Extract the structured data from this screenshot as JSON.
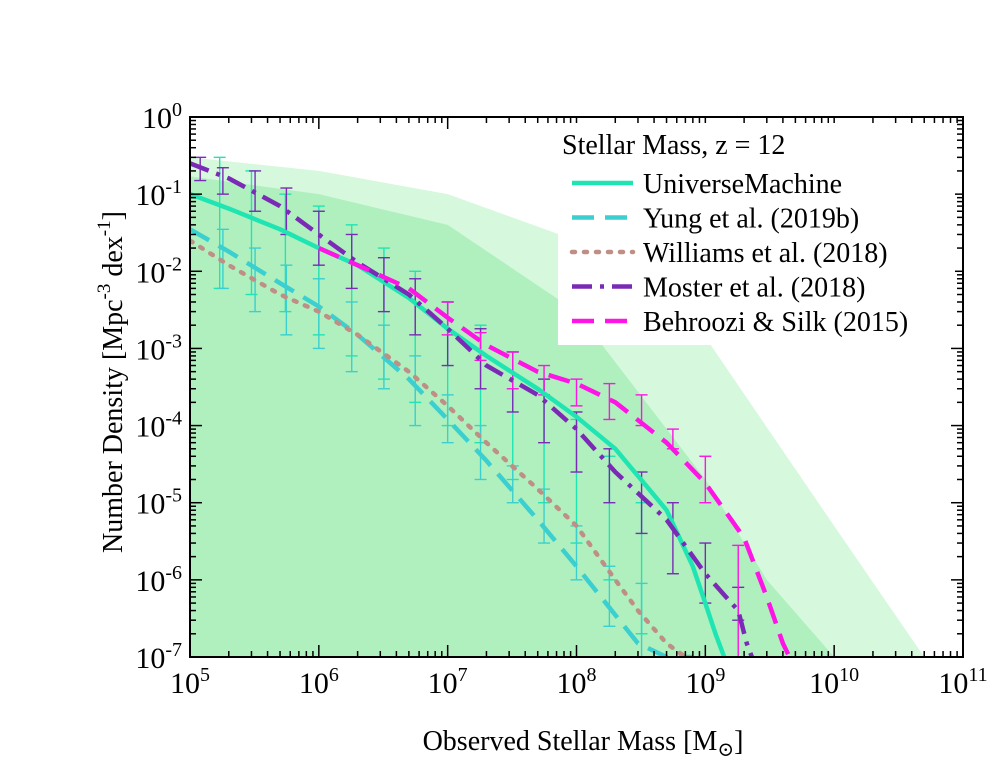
{
  "chart_data": {
    "type": "line",
    "title": "",
    "xlabel": "Observed Stellar Mass [M",
    "xlabel_sub": "⊙",
    "xlabel_end": "]",
    "ylabel": "Number Density [Mpc",
    "ylabel_sup1": "-3",
    "ylabel_mid": " dex",
    "ylabel_sup2": "-1",
    "ylabel_end": "]",
    "x_scale": "log",
    "y_scale": "log",
    "xlim": [
      100000,
      100000000000
    ],
    "ylim": [
      1e-07,
      1
    ],
    "x_ticks": [
      {
        "base": "10",
        "exp": "5"
      },
      {
        "base": "10",
        "exp": "6"
      },
      {
        "base": "10",
        "exp": "7"
      },
      {
        "base": "10",
        "exp": "8"
      },
      {
        "base": "10",
        "exp": "9"
      },
      {
        "base": "10",
        "exp": "10"
      },
      {
        "base": "10",
        "exp": "11"
      }
    ],
    "y_ticks": [
      {
        "base": "10",
        "exp": "-7"
      },
      {
        "base": "10",
        "exp": "-6"
      },
      {
        "base": "10",
        "exp": "-5"
      },
      {
        "base": "10",
        "exp": "-4"
      },
      {
        "base": "10",
        "exp": "-3"
      },
      {
        "base": "10",
        "exp": "-2"
      },
      {
        "base": "10",
        "exp": "-1"
      },
      {
        "base": "10",
        "exp": "0"
      }
    ],
    "legend_title": "Stellar Mass, z = 12",
    "legend_position": "top-right",
    "grid": false,
    "bands": [
      {
        "color": "#d6f8dc",
        "x": [
          100000,
          1000000,
          10000000,
          100000000,
          1000000000,
          10000000000,
          50000000000
        ],
        "upper": [
          0.3,
          0.2,
          0.1,
          0.025,
          0.0014,
          5e-06,
          1e-07
        ],
        "lower": [
          1e-07,
          1e-07,
          1e-07,
          1e-07,
          1e-07,
          1e-07,
          1e-07
        ]
      },
      {
        "color": "#b0f0be",
        "x": [
          100000,
          1000000,
          10000000,
          100000000,
          1000000000,
          3000000000,
          10000000000
        ],
        "upper": [
          0.17,
          0.1,
          0.04,
          0.003,
          2e-05,
          1e-06,
          1e-07
        ],
        "lower": [
          1e-07,
          1e-07,
          1e-07,
          1e-07,
          1e-07,
          1e-07,
          1e-07
        ]
      }
    ],
    "series": [
      {
        "name": "UniverseMachine",
        "color": "#1fe5b3",
        "dash": "solid",
        "x": [
          100000,
          200000,
          500000,
          1000000,
          2000000,
          5000000,
          10000000,
          20000000,
          50000000,
          100000000,
          200000000,
          500000000,
          800000000,
          1000000000,
          1200000000,
          1400000000
        ],
        "y": [
          0.1,
          0.065,
          0.035,
          0.02,
          0.012,
          0.0045,
          0.0018,
          0.0008,
          0.0003,
          0.00013,
          5e-05,
          8e-06,
          1.5e-06,
          5e-07,
          2e-07,
          1e-07
        ],
        "errors": {
          "x": [
            170000,
            300000,
            550000,
            1000000,
            1800000,
            3200000,
            5600000,
            10000000,
            18000000,
            32000000,
            56000000,
            100000000,
            180000000,
            320000000
          ],
          "lo": [
            0.006,
            0.005,
            0.003,
            0.0015,
            0.0008,
            0.0004,
            0.0002,
            0.0001,
            6e-05,
            2e-05,
            1e-05,
            3e-06,
            1e-06,
            2e-07
          ],
          "hi": [
            0.3,
            0.2,
            0.1,
            0.07,
            0.04,
            0.02,
            0.01,
            0.004,
            0.002,
            0.0009,
            0.0004,
            0.00012,
            4e-05,
            1e-05
          ]
        }
      },
      {
        "name": "Yung et al. (2019b)",
        "color": "#3ccfcf",
        "dash": "dashed",
        "x": [
          100000,
          200000,
          500000,
          1000000,
          2000000,
          5000000,
          10000000,
          20000000,
          50000000,
          100000000,
          200000000,
          300000000,
          500000000,
          800000000
        ],
        "y": [
          0.035,
          0.018,
          0.007,
          0.0035,
          0.0015,
          0.0004,
          0.00012,
          3.5e-05,
          6e-06,
          1.5e-06,
          3.5e-07,
          1.5e-07,
          1e-07,
          1e-07
        ],
        "errors": {
          "x": [
            180000,
            320000,
            560000,
            1000000,
            1800000,
            3200000,
            5600000,
            10000000,
            18000000,
            32000000,
            56000000,
            100000000,
            180000000,
            320000000
          ],
          "lo": [
            0.006,
            0.003,
            0.0015,
            0.001,
            0.0005,
            0.0003,
            0.0001,
            6e-05,
            2e-05,
            1e-05,
            3e-06,
            1e-06,
            2.5e-07,
            1e-07
          ],
          "hi": [
            0.035,
            0.02,
            0.012,
            0.008,
            0.004,
            0.002,
            0.0008,
            0.00025,
            0.0001,
            3e-05,
            1.5e-05,
            5e-06,
            1.5e-06,
            9e-07
          ]
        }
      },
      {
        "name": "Williams et al. (2018)",
        "color": "#bf8f86",
        "dash": "dotted",
        "x": [
          100000,
          200000,
          500000,
          1000000,
          2000000,
          5000000,
          10000000,
          20000000,
          50000000,
          100000000,
          200000000,
          300000000,
          500000000,
          700000000
        ],
        "y": [
          0.025,
          0.012,
          0.005,
          0.003,
          0.0015,
          0.0005,
          0.00018,
          6e-05,
          1.5e-05,
          5e-06,
          1e-06,
          4e-07,
          1.5e-07,
          1e-07
        ],
        "errors": null
      },
      {
        "name": "Moster et al. (2018)",
        "color": "#7a2ab5",
        "dash": "dashdot",
        "x": [
          100000,
          200000,
          500000,
          1000000,
          2000000,
          5000000,
          10000000,
          20000000,
          50000000,
          100000000,
          200000000,
          500000000,
          1000000000,
          1800000000,
          2100000000,
          2300000000
        ],
        "y": [
          0.25,
          0.16,
          0.07,
          0.03,
          0.013,
          0.005,
          0.0018,
          0.0006,
          0.00025,
          9e-05,
          2.5e-05,
          6e-06,
          1.2e-06,
          4e-07,
          1.5e-07,
          1e-07
        ],
        "errors": {
          "x": [
            120000,
            180000,
            320000,
            560000,
            1000000,
            1800000,
            3200000,
            5600000,
            10000000,
            18000000,
            32000000,
            56000000,
            100000000,
            180000000,
            320000000,
            560000000,
            1000000000,
            1800000000
          ],
          "lo": [
            0.15,
            0.1,
            0.06,
            0.03,
            0.012,
            0.006,
            0.003,
            0.0015,
            0.0006,
            0.0003,
            0.00015,
            6e-05,
            2.5e-05,
            1e-05,
            4e-06,
            1.2e-06,
            5e-07,
            3e-07
          ],
          "hi": [
            0.3,
            0.22,
            0.2,
            0.12,
            0.06,
            0.03,
            0.015,
            0.008,
            0.004,
            0.0018,
            0.0009,
            0.0004,
            0.00015,
            5e-05,
            2.5e-05,
            1e-05,
            3e-06,
            8e-07
          ]
        }
      },
      {
        "name": "Behroozi & Silk (2015)",
        "color": "#ff14e6",
        "dash": "dashed",
        "x": [
          1000000,
          2000000,
          5000000,
          10000000,
          20000000,
          50000000,
          100000000,
          200000000,
          500000000,
          1000000000,
          2000000000,
          3000000000,
          4000000000,
          4500000000
        ],
        "y": [
          0.02,
          0.012,
          0.006,
          0.0025,
          0.0011,
          0.0005,
          0.00035,
          0.0002,
          6e-05,
          1.8e-05,
          3.5e-06,
          6e-07,
          1.5e-07,
          1e-07
        ],
        "errors": {
          "x": [
            10000000,
            18000000,
            32000000,
            56000000,
            100000000,
            180000000,
            320000000,
            560000000,
            1000000000,
            1800000000
          ],
          "lo": [
            0.0015,
            0.0007,
            0.0003,
            0.00025,
            0.00018,
            0.00012,
            0.0001,
            5e-05,
            1e-05,
            1e-07
          ],
          "hi": [
            0.004,
            0.0016,
            0.0009,
            0.0006,
            0.0004,
            0.00035,
            0.00025,
            9e-05,
            4e-05,
            2.8e-06
          ]
        }
      }
    ]
  }
}
